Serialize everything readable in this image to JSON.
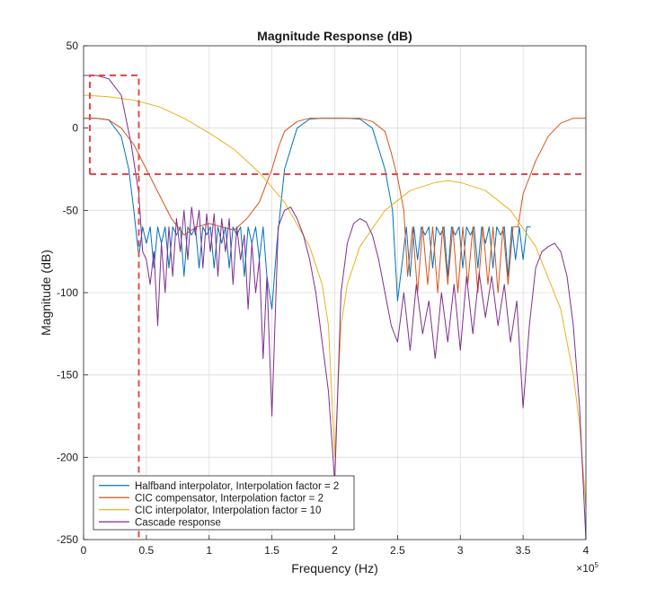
{
  "chart_data": {
    "type": "line",
    "title": "Magnitude Response (dB)",
    "xlabel": "Frequency (Hz)",
    "ylabel": "Magnitude (dB)",
    "x_exponent_label": "×10",
    "x_exponent_value": "5",
    "xlim": [
      0,
      400000
    ],
    "ylim": [
      -250,
      50
    ],
    "x_ticks": [
      {
        "value": 0,
        "label": "0"
      },
      {
        "value": 50000,
        "label": "0.5"
      },
      {
        "value": 100000,
        "label": "1"
      },
      {
        "value": 150000,
        "label": "1.5"
      },
      {
        "value": 200000,
        "label": "2"
      },
      {
        "value": 250000,
        "label": "2.5"
      },
      {
        "value": 300000,
        "label": "3"
      },
      {
        "value": 350000,
        "label": "3.5"
      },
      {
        "value": 400000,
        "label": "4"
      }
    ],
    "y_ticks": [
      {
        "value": 50,
        "label": "50"
      },
      {
        "value": 0,
        "label": "0"
      },
      {
        "value": -50,
        "label": "-50"
      },
      {
        "value": -100,
        "label": "-100"
      },
      {
        "value": -150,
        "label": "-150"
      },
      {
        "value": -200,
        "label": "-200"
      },
      {
        "value": -250,
        "label": "-250"
      }
    ],
    "grid": true,
    "legend_position": "bottom-left",
    "series": [
      {
        "name": "Halfband interpolator, Interpolation factor = 2",
        "color": "#0072BD",
        "x": [
          0,
          10000,
          20000,
          30000,
          36000,
          40000,
          44000,
          47000,
          50000,
          53000,
          56000,
          59000,
          62000,
          65000,
          68000,
          71000,
          74000,
          77000,
          80000,
          83000,
          86000,
          89000,
          92000,
          95000,
          98000,
          101000,
          104000,
          107000,
          110000,
          113000,
          116000,
          119000,
          122000,
          125000,
          128000,
          131000,
          134000,
          137000,
          140000,
          143000,
          146000,
          150000,
          154000,
          160000,
          170000,
          180000,
          190000,
          200000,
          210000,
          220000,
          230000,
          240000,
          246000,
          250000,
          254000,
          257000,
          260000,
          263000,
          266000,
          269000,
          272000,
          275000,
          278000,
          281000,
          284000,
          287000,
          290000,
          293000,
          296000,
          299000,
          302000,
          305000,
          308000,
          311000,
          314000,
          317000,
          320000,
          323000,
          326000,
          329000,
          332000,
          335000,
          338000,
          341000,
          344000,
          347000,
          350000,
          353000,
          356000
        ],
        "y": [
          6,
          6,
          5,
          -5,
          -25,
          -50,
          -78,
          -60,
          -70,
          -60,
          -85,
          -60,
          -70,
          -60,
          -85,
          -60,
          -65,
          -60,
          -90,
          -60,
          -65,
          -60,
          -85,
          -60,
          -65,
          -60,
          -85,
          -60,
          -70,
          -60,
          -85,
          -60,
          -65,
          -60,
          -90,
          -60,
          -70,
          -60,
          -80,
          -60,
          -90,
          -110,
          -70,
          -25,
          0,
          5.5,
          6,
          6,
          6,
          5.5,
          0,
          -25,
          -50,
          -105,
          -80,
          -60,
          -90,
          -60,
          -80,
          -60,
          -65,
          -60,
          -85,
          -60,
          -65,
          -60,
          -90,
          -60,
          -65,
          -60,
          -85,
          -60,
          -65,
          -60,
          -85,
          -60,
          -70,
          -60,
          -85,
          -60,
          -65,
          -60,
          -90,
          -60,
          -80,
          -60,
          -80,
          -60,
          -60
        ]
      },
      {
        "name": "CIC compensator, Interpolation factor = 2",
        "color": "#D95319",
        "x": [
          0,
          10000,
          20000,
          30000,
          40000,
          50000,
          60000,
          70000,
          80000,
          90000,
          100000,
          110000,
          120000,
          130000,
          140000,
          145000,
          150000,
          155000,
          160000,
          170000,
          180000,
          190000,
          200000,
          210000,
          220000,
          230000,
          240000,
          245000,
          250000,
          255000,
          258000,
          262000,
          266000,
          270000,
          274000,
          278000,
          282000,
          286000,
          290000,
          294000,
          298000,
          302000,
          306000,
          310000,
          314000,
          318000,
          322000,
          326000,
          330000,
          334000,
          338000,
          342000,
          346000,
          350000,
          360000,
          370000,
          380000,
          390000,
          400000
        ],
        "y": [
          6,
          6,
          5,
          0,
          -10,
          -25,
          -40,
          -55,
          -65,
          -60,
          -58,
          -60,
          -62,
          -55,
          -45,
          -35,
          -25,
          -12,
          -2,
          4,
          6,
          6,
          6,
          6,
          6,
          4,
          -2,
          -15,
          -30,
          -50,
          -90,
          -60,
          -100,
          -60,
          -95,
          -60,
          -100,
          -60,
          -95,
          -60,
          -100,
          -60,
          -95,
          -60,
          -100,
          -60,
          -95,
          -60,
          -100,
          -60,
          -95,
          -60,
          -60,
          -40,
          -20,
          -5,
          3,
          6,
          6
        ]
      },
      {
        "name": "CIC interpolator, Interpolation factor = 10",
        "color": "#EDB120",
        "x": [
          0,
          20000,
          40000,
          60000,
          80000,
          100000,
          120000,
          140000,
          160000,
          180000,
          190000,
          195000,
          200000,
          205000,
          210000,
          220000,
          240000,
          260000,
          280000,
          290000,
          300000,
          320000,
          340000,
          360000,
          380000,
          390000,
          395000,
          400000
        ],
        "y": [
          20,
          19,
          17,
          13,
          6,
          -3,
          -13,
          -27,
          -45,
          -72,
          -95,
          -120,
          -200,
          -120,
          -95,
          -72,
          -50,
          -38,
          -33,
          -32,
          -33,
          -38,
          -50,
          -72,
          -110,
          -150,
          -180,
          -230
        ]
      },
      {
        "name": "Cascade response",
        "color": "#7E2F8E",
        "x": [
          0,
          10000,
          20000,
          30000,
          38000,
          44000,
          47000,
          50000,
          53000,
          56000,
          59000,
          62000,
          65000,
          68000,
          71000,
          74000,
          77000,
          80000,
          83000,
          86000,
          89000,
          92000,
          95000,
          98000,
          101000,
          104000,
          107000,
          110000,
          113000,
          116000,
          119000,
          122000,
          125000,
          128000,
          131000,
          134000,
          137000,
          140000,
          143000,
          146000,
          150000,
          155000,
          160000,
          165000,
          170000,
          175000,
          180000,
          185000,
          190000,
          195000,
          200000,
          205000,
          210000,
          215000,
          220000,
          225000,
          230000,
          235000,
          240000,
          245000,
          250000,
          255000,
          260000,
          265000,
          270000,
          275000,
          280000,
          285000,
          290000,
          295000,
          300000,
          305000,
          310000,
          315000,
          320000,
          325000,
          330000,
          335000,
          340000,
          345000,
          350000,
          355000,
          360000,
          365000,
          370000,
          375000,
          380000,
          385000,
          390000,
          395000,
          400000
        ],
        "y": [
          32,
          32,
          30,
          20,
          -10,
          -40,
          -75,
          -80,
          -95,
          -75,
          -120,
          -70,
          -100,
          -60,
          -90,
          -55,
          -75,
          -50,
          -80,
          -48,
          -65,
          -50,
          -85,
          -52,
          -75,
          -52,
          -90,
          -55,
          -75,
          -55,
          -95,
          -60,
          -80,
          -65,
          -110,
          -70,
          -100,
          -80,
          -140,
          -90,
          -175,
          -60,
          -50,
          -48,
          -55,
          -65,
          -80,
          -100,
          -130,
          -160,
          -215,
          -100,
          -70,
          -58,
          -55,
          -57,
          -65,
          -80,
          -100,
          -120,
          -130,
          -100,
          -135,
          -95,
          -125,
          -105,
          -140,
          -100,
          -130,
          -95,
          -135,
          -90,
          -125,
          -88,
          -115,
          -90,
          -120,
          -95,
          -130,
          -105,
          -170,
          -120,
          -85,
          -75,
          -72,
          -70,
          -75,
          -90,
          -120,
          -170,
          -250
        ]
      }
    ],
    "mask": {
      "color": "#E8484A",
      "passband_edge": 5000,
      "passband_level": 32,
      "stopband_edge": 44000,
      "stopband_level": -28
    }
  }
}
